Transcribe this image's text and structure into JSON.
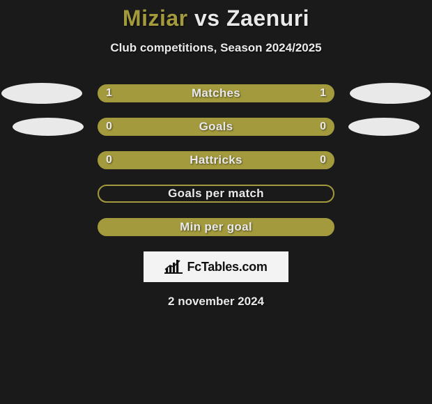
{
  "colors": {
    "background": "#1a1a1a",
    "accent": "#a39a3d",
    "text": "#e9e9e9",
    "ellipse": "#e9e9e9",
    "attribution_bg": "#f3f3f3"
  },
  "header": {
    "player1": "Miziar",
    "separator": "vs",
    "player2": "Zaenuri",
    "subtitle": "Club competitions, Season 2024/2025"
  },
  "stats": [
    {
      "label": "Matches",
      "left_value": "1",
      "right_value": "1",
      "fill": "#a39a3d",
      "border": "#a39a3d",
      "show_values": true,
      "show_left_ellipse": true,
      "show_right_ellipse": true,
      "ellipse_small": false
    },
    {
      "label": "Goals",
      "left_value": "0",
      "right_value": "0",
      "fill": "#a39a3d",
      "border": "#a39a3d",
      "show_values": true,
      "show_left_ellipse": true,
      "show_right_ellipse": true,
      "ellipse_small": true
    },
    {
      "label": "Hattricks",
      "left_value": "0",
      "right_value": "0",
      "fill": "#a39a3d",
      "border": "#a39a3d",
      "show_values": true,
      "show_left_ellipse": false,
      "show_right_ellipse": false,
      "ellipse_small": false
    },
    {
      "label": "Goals per match",
      "left_value": "",
      "right_value": "",
      "fill": "transparent",
      "border": "#a39a3d",
      "show_values": false,
      "show_left_ellipse": false,
      "show_right_ellipse": false,
      "ellipse_small": false
    },
    {
      "label": "Min per goal",
      "left_value": "",
      "right_value": "",
      "fill": "#a39a3d",
      "border": "#a39a3d",
      "show_values": false,
      "show_left_ellipse": false,
      "show_right_ellipse": false,
      "ellipse_small": false
    }
  ],
  "attribution": {
    "text": "FcTables.com"
  },
  "date": "2 november 2024"
}
